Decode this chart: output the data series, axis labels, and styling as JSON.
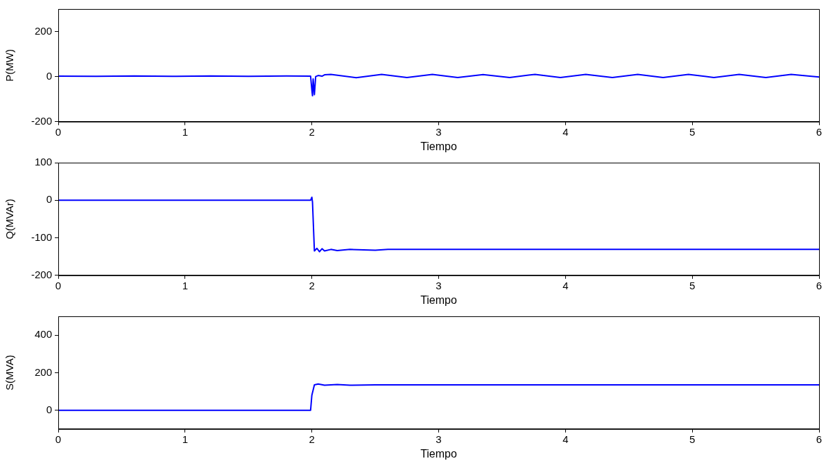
{
  "chart_data": [
    {
      "type": "line",
      "xlabel": "Tiempo",
      "ylabel": "P(MW)",
      "xlim": [
        0,
        6
      ],
      "xticks": [
        0,
        1,
        2,
        3,
        4,
        5,
        6
      ],
      "ylim": [
        -200,
        300
      ],
      "yticks": [
        -200,
        0,
        200
      ],
      "grid": false,
      "legend": false,
      "marker": "none",
      "line_style": "solid",
      "x": [
        0,
        0.3,
        0.6,
        0.9,
        1.2,
        1.5,
        1.8,
        1.99,
        2.0,
        2.005,
        2.01,
        2.02,
        2.03,
        2.05,
        2.08,
        2.1,
        2.15,
        2.35,
        2.55,
        2.75,
        2.95,
        3.15,
        3.35,
        3.56,
        3.76,
        3.96,
        4.16,
        4.37,
        4.57,
        4.77,
        4.97,
        5.17,
        5.37,
        5.58,
        5.78,
        6
      ],
      "series": [
        {
          "color": "#0000ff",
          "values": [
            2,
            1,
            3,
            1,
            3,
            1,
            3,
            2,
            -60,
            -85,
            -10,
            -80,
            0,
            5,
            2,
            8,
            10,
            -5,
            10,
            -4,
            10,
            -4,
            9,
            -4,
            10,
            -4,
            10,
            -4,
            10,
            -4,
            10,
            -4,
            10,
            -4,
            10,
            -2
          ]
        }
      ]
    },
    {
      "type": "line",
      "xlabel": "Tiempo",
      "ylabel": "Q(MVAr)",
      "xlim": [
        0,
        6
      ],
      "xticks": [
        0,
        1,
        2,
        3,
        4,
        5,
        6
      ],
      "ylim": [
        -200,
        100
      ],
      "yticks": [
        -200,
        -100,
        0,
        100
      ],
      "grid": false,
      "legend": false,
      "marker": "none",
      "line_style": "solid",
      "x": [
        0,
        1.99,
        2.0,
        2.005,
        2.02,
        2.04,
        2.06,
        2.08,
        2.1,
        2.15,
        2.2,
        2.3,
        2.5,
        2.6,
        6
      ],
      "series": [
        {
          "color": "#0000ff",
          "values": [
            0,
            0,
            8,
            -5,
            -135,
            -128,
            -137,
            -129,
            -135,
            -131,
            -134,
            -131,
            -133,
            -131,
            -131
          ]
        }
      ]
    },
    {
      "type": "line",
      "xlabel": "Tiempo",
      "ylabel": "S(MVA)",
      "xlim": [
        0,
        6
      ],
      "xticks": [
        0,
        1,
        2,
        3,
        4,
        5,
        6
      ],
      "ylim": [
        -100,
        500
      ],
      "yticks": [
        0,
        200,
        400
      ],
      "grid": false,
      "legend": false,
      "marker": "none",
      "line_style": "solid",
      "x": [
        0,
        1.99,
        2.0,
        2.02,
        2.05,
        2.1,
        2.2,
        2.3,
        2.5,
        6
      ],
      "series": [
        {
          "color": "#0000ff",
          "values": [
            0,
            0,
            80,
            135,
            140,
            133,
            137,
            133,
            135,
            135
          ]
        }
      ]
    }
  ]
}
